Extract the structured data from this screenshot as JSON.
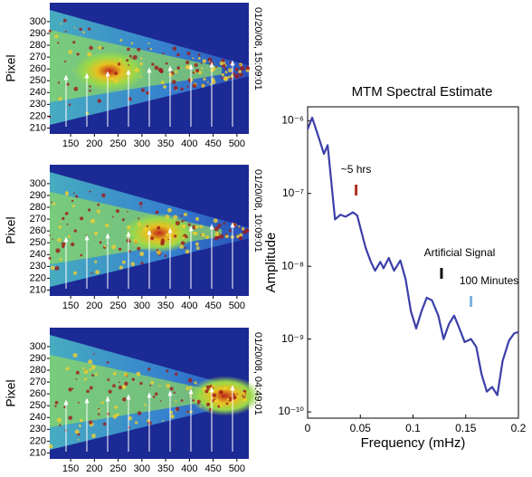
{
  "chart_data": [
    {
      "type": "image",
      "y_label": "Pixel",
      "annotation": "01/20/08, 15:09:01",
      "xlim": [
        106,
        525
      ],
      "ylim": [
        205,
        316
      ],
      "xticks": [
        150,
        200,
        250,
        300,
        350,
        400,
        450,
        500
      ],
      "yticks": [
        210,
        220,
        230,
        240,
        250,
        260,
        270,
        280,
        290,
        300
      ]
    },
    {
      "type": "image",
      "y_label": "Pixel",
      "annotation": "01/20/08, 10:09:01",
      "xlim": [
        106,
        525
      ],
      "ylim": [
        205,
        316
      ],
      "xticks": [
        150,
        200,
        250,
        300,
        350,
        400,
        450,
        500
      ],
      "yticks": [
        210,
        220,
        230,
        240,
        250,
        260,
        270,
        280,
        290,
        300
      ]
    },
    {
      "type": "image",
      "y_label": "Pixel",
      "annotation": "01/20/08, 04:49:01",
      "xlim": [
        106,
        525
      ],
      "ylim": [
        205,
        316
      ],
      "xticks": [
        150,
        200,
        250,
        300,
        350,
        400,
        450,
        500
      ],
      "yticks": [
        210,
        220,
        230,
        240,
        250,
        260,
        270,
        280,
        290,
        300
      ]
    },
    {
      "type": "line",
      "title": "MTM Spectral Estimate",
      "x_label": "Frequency (mHz)",
      "y_label": "Amplitude",
      "log_y": true,
      "grid": false,
      "color": "#3b3fa8",
      "xlim": [
        0,
        0.2
      ],
      "xticks": [
        0,
        0.05,
        0.1,
        0.15,
        0.2
      ],
      "ylim": [
        8.2e-11,
        1.55e-06
      ],
      "yticks": [
        {
          "value": 1e-10,
          "label": "10⁻¹⁰"
        },
        {
          "value": 1e-09,
          "label": "10⁻⁹"
        },
        {
          "value": 1e-08,
          "label": "10⁻⁸"
        },
        {
          "value": 1e-07,
          "label": "10⁻⁷"
        },
        {
          "value": 1e-06,
          "label": "10⁻⁶"
        }
      ],
      "x": [
        0,
        0.0043,
        0.01,
        0.0155,
        0.019,
        0.022,
        0.026,
        0.031,
        0.036,
        0.043,
        0.047,
        0.055,
        0.06,
        0.064,
        0.069,
        0.072,
        0.077,
        0.082,
        0.088,
        0.093,
        0.098,
        0.103,
        0.108,
        0.113,
        0.118,
        0.124,
        0.129,
        0.134,
        0.139,
        0.144,
        0.149,
        0.155,
        0.16,
        0.165,
        0.17,
        0.175,
        0.18,
        0.185,
        0.191,
        0.196,
        0.2
      ],
      "values": [
        7.6e-07,
        1.1e-06,
        6.2e-07,
        3.5e-07,
        4.6e-07,
        1.7e-07,
        4.4e-08,
        5.1e-08,
        4.8e-08,
        5.5e-08,
        5e-08,
        1.8e-08,
        1.15e-08,
        8.7e-09,
        1.15e-08,
        9.4e-09,
        1.3e-08,
        8.7e-09,
        1.2e-08,
        6.6e-09,
        2.4e-09,
        1.4e-09,
        2.4e-09,
        3.7e-09,
        3.4e-09,
        2.1e-09,
        1e-09,
        1.6e-09,
        2.1e-09,
        1.4e-09,
        9.1e-10,
        1e-09,
        7.8e-10,
        3.3e-10,
        1.9e-10,
        2.2e-10,
        1.7e-10,
        5e-10,
        9.5e-10,
        1.2e-09,
        1.25e-09
      ],
      "annotations": [
        {
          "text": "~5 hrs",
          "x": 0.046,
          "color": "#b03020"
        },
        {
          "text": "Artificial Signal",
          "x": 0.127,
          "color": "#111111"
        },
        {
          "text": "100 Minutes",
          "x": 0.155,
          "color": "#7fb2e0"
        }
      ]
    }
  ]
}
